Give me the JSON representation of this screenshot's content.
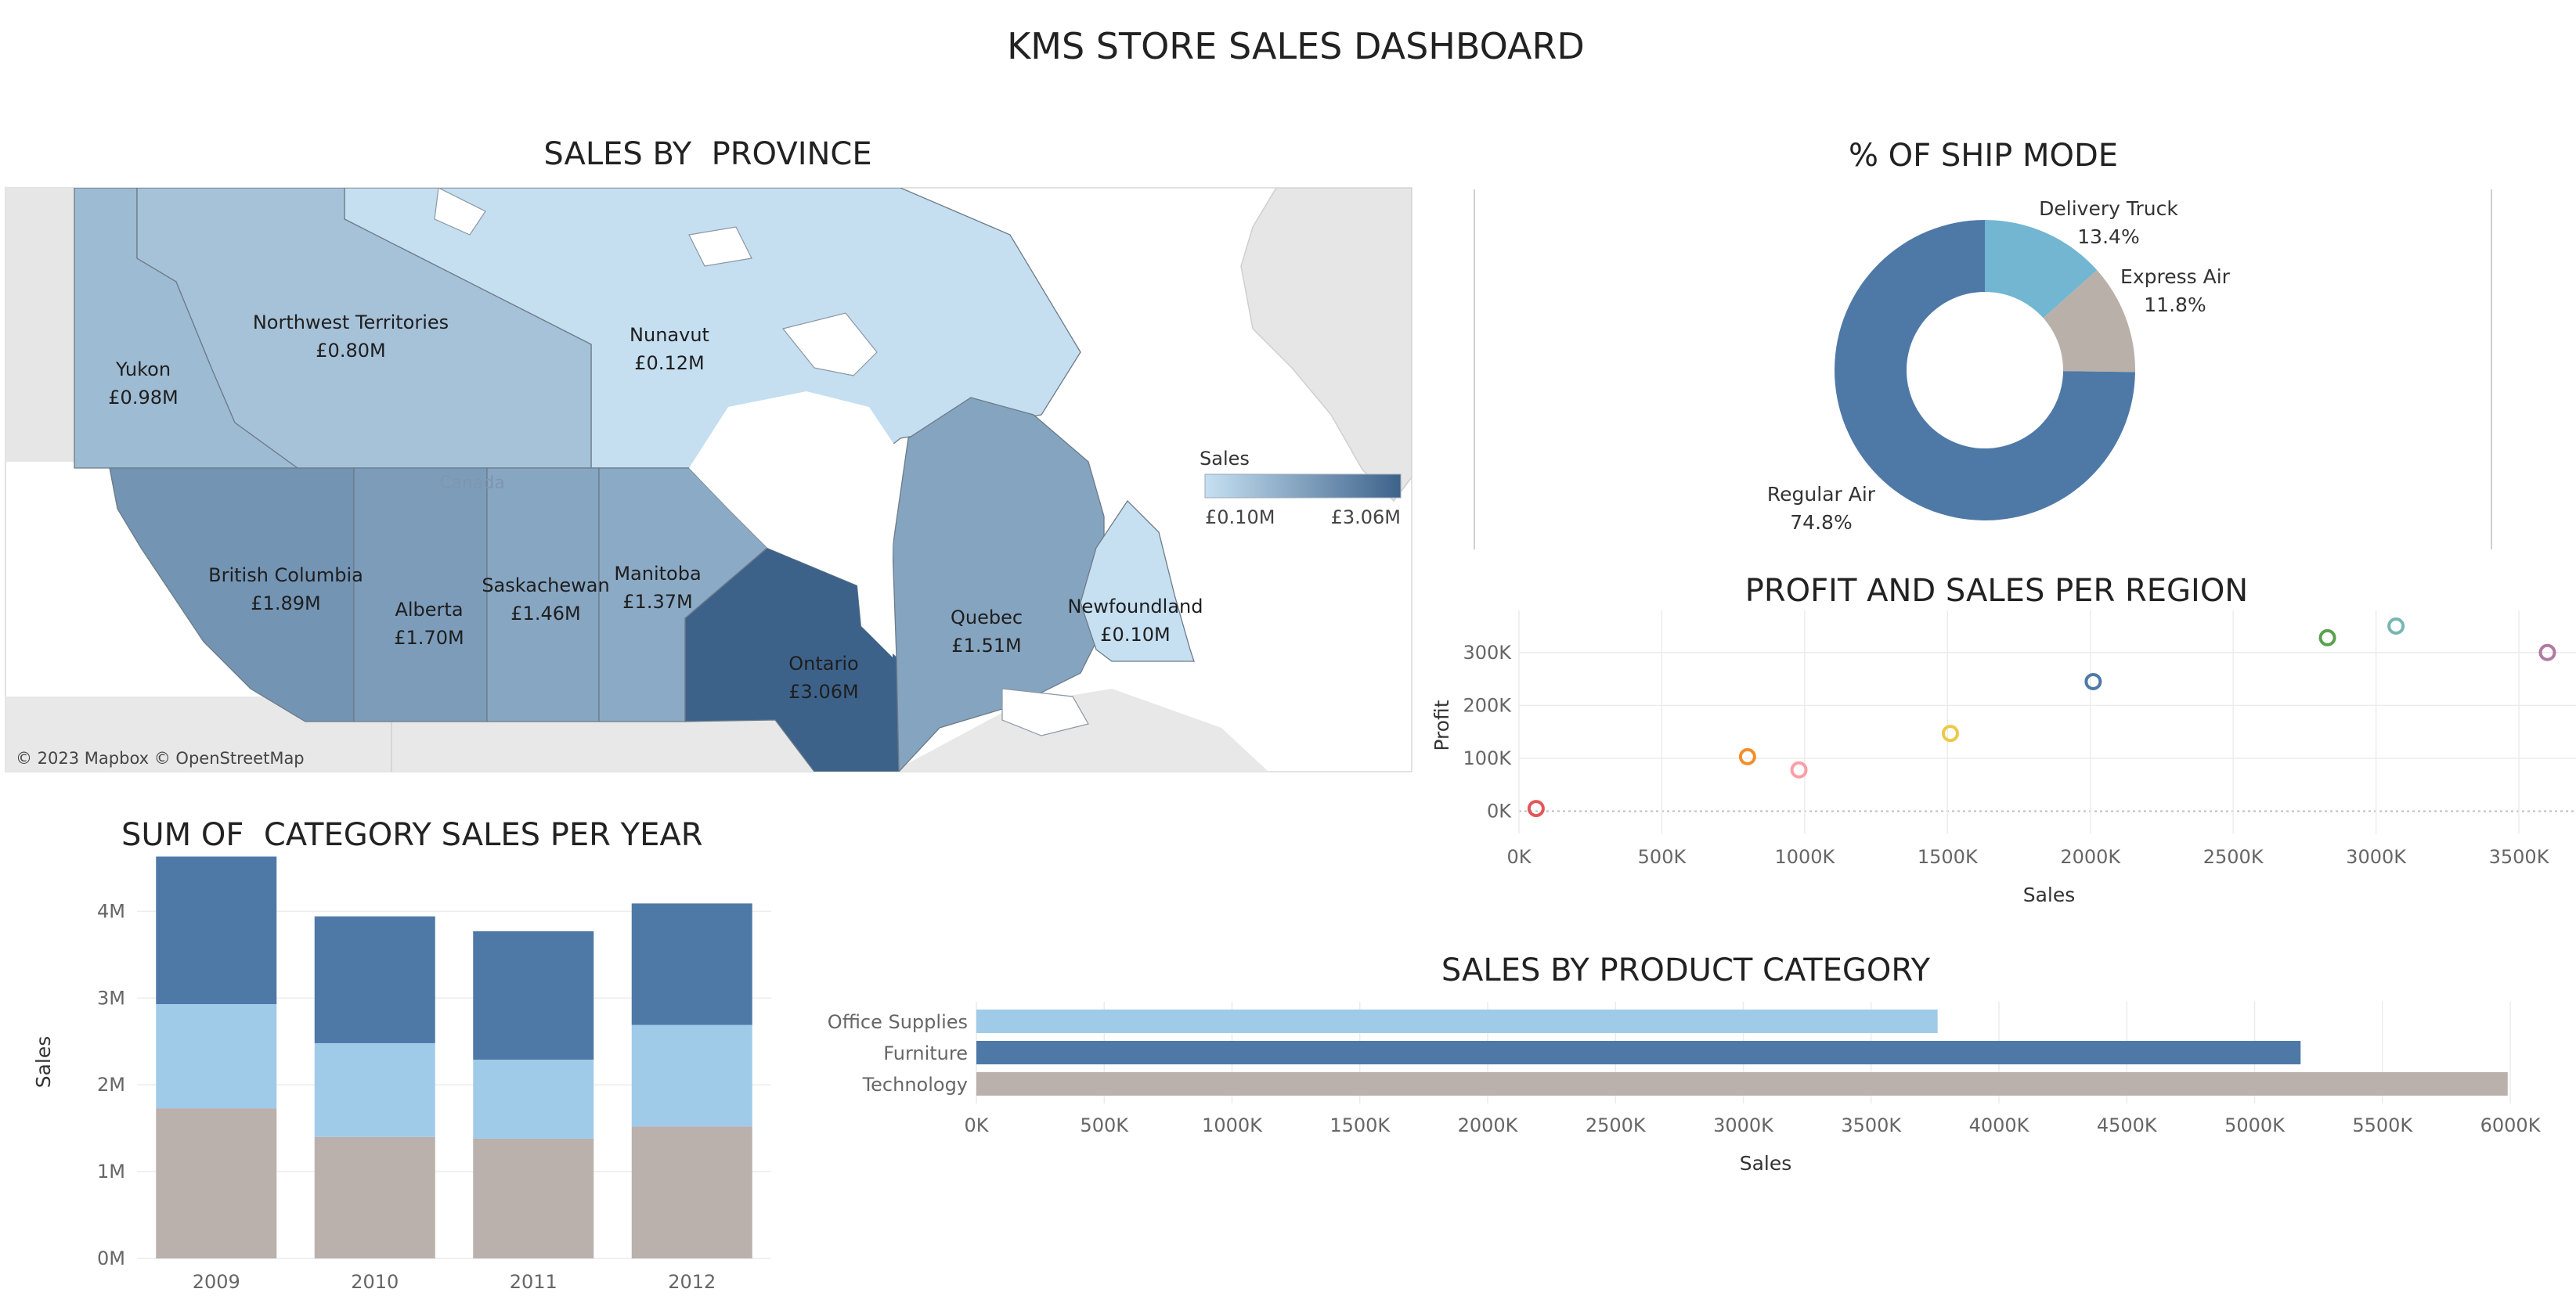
{
  "dashboard_title": "KMS STORE SALES DASHBOARD",
  "chart_data": [
    {
      "id": "sales_by_province",
      "type": "choropleth-map",
      "title": "SALES BY  PROVINCE",
      "regions": [
        {
          "name": "Yukon",
          "label": "£0.98M",
          "value": 0.98
        },
        {
          "name": "Northwest Territories",
          "label": "£0.80M",
          "value": 0.8
        },
        {
          "name": "Nunavut",
          "label": "£0.12M",
          "value": 0.12
        },
        {
          "name": "British Columbia",
          "label": "£1.89M",
          "value": 1.89
        },
        {
          "name": "Alberta",
          "label": "£1.70M",
          "value": 1.7
        },
        {
          "name": "Saskachewan",
          "label": "£1.46M",
          "value": 1.46
        },
        {
          "name": "Manitoba",
          "label": "£1.37M",
          "value": 1.37
        },
        {
          "name": "Ontario",
          "label": "£3.06M",
          "value": 3.06
        },
        {
          "name": "Quebec",
          "label": "£1.51M",
          "value": 1.51
        },
        {
          "name": "Newfoundland",
          "label": "£0.10M",
          "value": 0.1
        }
      ],
      "legend": {
        "title": "Sales",
        "min_label": "£0.10M",
        "max_label": "£3.06M",
        "min": 0.1,
        "max": 3.06,
        "color_low": "#c6e0f2",
        "color_high": "#3d628a"
      },
      "country_label": "Canada",
      "attribution": "© 2023 Mapbox © OpenStreetMap"
    },
    {
      "id": "ship_mode",
      "type": "pie",
      "title": "% OF SHIP MODE",
      "slices": [
        {
          "name": "Delivery Truck",
          "percent": 13.4,
          "label": "13.4%",
          "color": "#72b6d2"
        },
        {
          "name": "Express Air",
          "percent": 11.8,
          "label": "11.8%",
          "color": "#b9b0aa"
        },
        {
          "name": "Regular Air",
          "percent": 74.8,
          "label": "74.8%",
          "color": "#4e79a7"
        }
      ]
    },
    {
      "id": "profit_sales_region",
      "type": "scatter",
      "title": "PROFIT AND SALES PER REGION",
      "xlabel": "Sales",
      "ylabel": "Profit",
      "xlim": [
        0,
        3700
      ],
      "ylim": [
        -20,
        350
      ],
      "xticks": [
        0,
        500,
        1000,
        1500,
        2000,
        2500,
        3000,
        3500
      ],
      "xtick_labels": [
        "0K",
        "500K",
        "1000K",
        "1500K",
        "2000K",
        "2500K",
        "3000K",
        "3500K"
      ],
      "yticks": [
        0,
        100,
        200,
        300
      ],
      "ytick_labels": [
        "0K",
        "100K",
        "200K",
        "300K"
      ],
      "points": [
        {
          "x": 60,
          "y": 5,
          "color": "#e15759"
        },
        {
          "x": 800,
          "y": 103,
          "color": "#f28e2b"
        },
        {
          "x": 980,
          "y": 78,
          "color": "#ff9da7"
        },
        {
          "x": 1510,
          "y": 147,
          "color": "#edc948"
        },
        {
          "x": 2010,
          "y": 245,
          "color": "#4e79a7"
        },
        {
          "x": 2830,
          "y": 328,
          "color": "#59a14f"
        },
        {
          "x": 3070,
          "y": 350,
          "color": "#76b7b2"
        },
        {
          "x": 3600,
          "y": 300,
          "color": "#b07aa1"
        }
      ]
    },
    {
      "id": "category_sales_year",
      "type": "bar",
      "stacked": true,
      "title": "SUM OF  CATEGORY SALES PER YEAR",
      "xlabel": "",
      "ylabel": "Sales",
      "ylim": [
        0,
        4.4
      ],
      "yticks": [
        0,
        1,
        2,
        3,
        4
      ],
      "ytick_labels": [
        "0M",
        "1M",
        "2M",
        "3M",
        "4M"
      ],
      "categories": [
        "2009",
        "2010",
        "2011",
        "2012"
      ],
      "series": [
        {
          "key": "technology",
          "color": "#bab0ac",
          "values": [
            1.73,
            1.4,
            1.38,
            1.52
          ]
        },
        {
          "key": "office_supplies",
          "color": "#a0cbe8",
          "values": [
            1.2,
            1.08,
            0.91,
            1.17
          ]
        },
        {
          "key": "furniture",
          "color": "#4e79a7",
          "values": [
            1.7,
            1.46,
            1.48,
            1.4
          ]
        }
      ]
    },
    {
      "id": "sales_product_category",
      "type": "bar",
      "orientation": "horizontal",
      "title": "SALES BY PRODUCT CATEGORY",
      "xlabel": "Sales",
      "ylabel": "",
      "xlim": [
        0,
        6150
      ],
      "xticks": [
        0,
        500,
        1000,
        1500,
        2000,
        2500,
        3000,
        3500,
        4000,
        4500,
        5000,
        5500,
        6000
      ],
      "xtick_labels": [
        "0K",
        "500K",
        "1000K",
        "1500K",
        "2000K",
        "2500K",
        "3000K",
        "3500K",
        "4000K",
        "4500K",
        "5000K",
        "5500K",
        "6000K"
      ],
      "categories": [
        "Office Supplies",
        "Furniture",
        "Technology"
      ],
      "values": [
        3760,
        5180,
        5990
      ],
      "colors": [
        "#a0cbe8",
        "#4e79a7",
        "#bab0ac"
      ]
    }
  ]
}
